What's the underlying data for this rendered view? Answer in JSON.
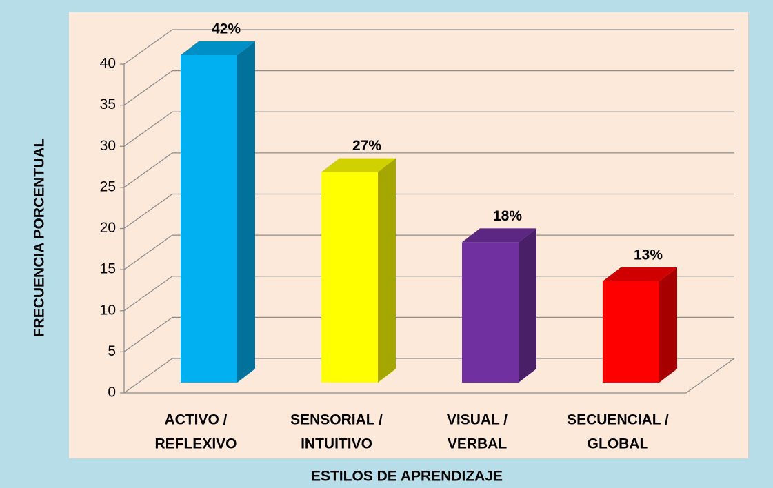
{
  "chart_data": {
    "type": "bar3d",
    "categories": [
      [
        "ACTIVO /",
        "REFLEXIVO"
      ],
      [
        "SENSORIAL /",
        "INTUITIVO"
      ],
      [
        "VISUAL /",
        "VERBAL"
      ],
      [
        "SECUENCIAL /",
        "GLOBAL"
      ]
    ],
    "values": [
      42,
      27,
      18,
      13
    ],
    "value_labels": [
      "42%",
      "27%",
      "18%",
      "13%"
    ],
    "colors": [
      "#00b0f0",
      "#ffff00",
      "#7030a0",
      "#ff0000"
    ],
    "ylabel": "FRECUENCIA PORCENTUAL",
    "xlabel": "ESTILOS DE APRENDIZAJE",
    "ylim": [
      0,
      40
    ],
    "yticks": [
      0,
      5,
      10,
      15,
      20,
      25,
      30,
      35,
      40
    ],
    "grid": true
  }
}
